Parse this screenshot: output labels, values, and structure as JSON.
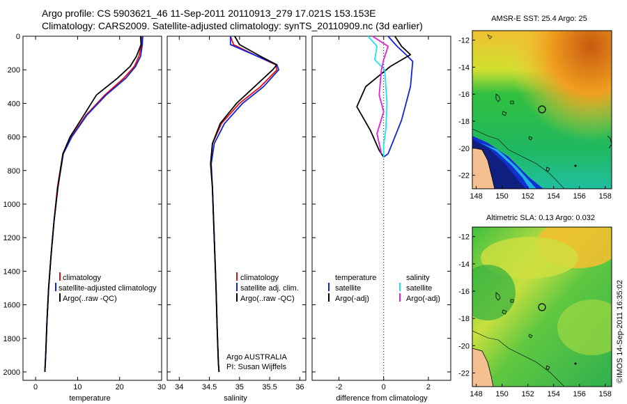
{
  "header": {
    "line1": "Argo profile: CS 5903621_46 11-Sep-2011 20110913_279 17.021S 153.153E",
    "line2": "Climatology: CARS2009. Satellite-adjusted climatology: synTS_20110909.nc (3d earlier)"
  },
  "colors": {
    "climatology": "#e01010",
    "satellite": "#1020e0",
    "argo": "#000000",
    "sat_sal": "#20e0f0",
    "argo_sal": "#e020e0"
  },
  "chart_data": [
    {
      "type": "line",
      "xlabel": "temperature",
      "xlim": [
        -3,
        30
      ],
      "ylim": [
        2050,
        0
      ],
      "xticks": [
        0,
        10,
        20,
        30
      ],
      "xticklabels": [
        "0",
        "10",
        "20",
        "30"
      ],
      "yticks": [
        0,
        200,
        400,
        600,
        800,
        1000,
        1200,
        1400,
        1600,
        1800,
        2000
      ],
      "yticklabels": [
        "0",
        "200",
        "400",
        "600",
        "800",
        "1000",
        "1200",
        "1400",
        "1600",
        "1800",
        "2000"
      ],
      "legend": [
        "climatology",
        "satellite-adjusted climatology",
        "Argo(..raw -QC)"
      ],
      "series": [
        {
          "name": "climatology",
          "x": [
            25.3,
            25.2,
            24.6,
            23.5,
            21.0,
            16.5,
            12.0,
            8.5,
            6.5,
            5.2,
            4.4,
            3.7,
            3.1,
            2.7,
            2.4,
            2.2
          ],
          "y": [
            0,
            50,
            120,
            180,
            250,
            350,
            470,
            600,
            700,
            900,
            1100,
            1300,
            1500,
            1700,
            1900,
            2000
          ]
        },
        {
          "name": "satellite-adjusted climatology",
          "x": [
            25.5,
            25.4,
            25.0,
            23.8,
            21.5,
            16.8,
            12.2,
            8.6,
            6.6,
            5.3,
            4.4,
            3.7,
            3.1,
            2.7,
            2.4,
            2.2
          ],
          "y": [
            0,
            50,
            120,
            180,
            250,
            350,
            470,
            600,
            700,
            900,
            1100,
            1300,
            1500,
            1700,
            1900,
            2000
          ]
        },
        {
          "name": "Argo(..raw -QC)",
          "x": [
            25.0,
            25.1,
            24.0,
            22.5,
            19.5,
            14.5,
            11.5,
            8.2,
            6.5,
            5.3,
            4.4,
            3.7,
            3.1,
            2.7,
            2.4,
            2.2
          ],
          "y": [
            0,
            50,
            120,
            180,
            250,
            350,
            470,
            600,
            700,
            900,
            1100,
            1300,
            1500,
            1700,
            1900,
            2000
          ]
        }
      ]
    },
    {
      "type": "line",
      "xlabel": "salinity",
      "xlim": [
        33.8,
        36.1
      ],
      "ylim": [
        2050,
        0
      ],
      "xticks": [
        34,
        34.5,
        35,
        35.5,
        36
      ],
      "xticklabels": [
        "34",
        "34.5",
        "35",
        "35.5",
        "36"
      ],
      "legend": [
        "climatology",
        "satellite adj. clim.",
        "Argo(..raw -QC)"
      ],
      "annotation": [
        "Argo AUSTRALIA",
        "PI: Susan Wijffels"
      ],
      "series": [
        {
          "name": "climatology",
          "x": [
            34.85,
            34.9,
            35.3,
            35.6,
            35.62,
            35.35,
            35.0,
            34.7,
            34.55,
            34.52,
            34.55,
            34.58,
            34.61,
            34.63,
            34.65,
            34.66
          ],
          "y": [
            0,
            50,
            120,
            170,
            200,
            300,
            400,
            520,
            640,
            760,
            900,
            1200,
            1500,
            1750,
            1950,
            2000
          ]
        },
        {
          "name": "satellite adj. clim.",
          "x": [
            34.85,
            34.85,
            35.3,
            35.62,
            35.65,
            35.4,
            35.05,
            34.75,
            34.58,
            34.53,
            34.55,
            34.58,
            34.61,
            34.63,
            34.65,
            34.66
          ],
          "y": [
            0,
            50,
            120,
            170,
            200,
            300,
            400,
            520,
            640,
            760,
            900,
            1200,
            1500,
            1750,
            1950,
            2000
          ]
        },
        {
          "name": "Argo(..raw -QC)",
          "x": [
            34.92,
            35.0,
            35.35,
            35.62,
            35.55,
            35.25,
            34.95,
            34.68,
            34.55,
            34.52,
            34.55,
            34.58,
            34.61,
            34.63,
            34.65,
            34.66
          ],
          "y": [
            0,
            50,
            120,
            170,
            200,
            300,
            400,
            520,
            640,
            760,
            900,
            1200,
            1500,
            1750,
            1950,
            2000
          ]
        }
      ]
    },
    {
      "type": "line",
      "xlabel": "difference from climatology",
      "xlim": [
        -3.2,
        3.0
      ],
      "ylim": [
        2050,
        0
      ],
      "xticks": [
        -2,
        0,
        2
      ],
      "xticklabels": [
        "-2",
        "0",
        "2"
      ],
      "legend_groups": [
        {
          "title": "temperature",
          "items": [
            "satellite",
            "Argo(-adj)"
          ]
        },
        {
          "title": "salinity",
          "items": [
            "satellite",
            "Argo(-adj)"
          ]
        }
      ],
      "series": [
        {
          "name": "temperature satellite",
          "x": [
            0.2,
            0.6,
            1.0,
            1.3,
            1.2,
            0.8,
            0.5,
            0.2,
            0.0
          ],
          "y": [
            0,
            60,
            110,
            150,
            300,
            500,
            600,
            700,
            720
          ]
        },
        {
          "name": "temperature Argo(-adj)",
          "x": [
            0.5,
            0.8,
            1.2,
            0.3,
            -0.8,
            -1.2,
            -0.6,
            -0.2,
            0.0
          ],
          "y": [
            0,
            60,
            110,
            180,
            300,
            420,
            560,
            680,
            720
          ]
        },
        {
          "name": "salinity satellite",
          "x": [
            -0.7,
            -0.3,
            -0.4,
            0.05,
            0.15,
            0.1,
            0.0,
            0.0
          ],
          "y": [
            0,
            60,
            140,
            200,
            400,
            550,
            650,
            720
          ]
        },
        {
          "name": "salinity Argo(-adj)",
          "x": [
            -0.5,
            0.2,
            0.0,
            -0.1,
            -0.2,
            0.0,
            -0.3,
            -0.1
          ],
          "y": [
            0,
            60,
            140,
            200,
            350,
            450,
            580,
            700
          ]
        }
      ]
    },
    {
      "type": "heatmap",
      "title": "AMSR-E SST: 25.4 Argo: 25",
      "xticks": [
        148,
        150,
        152,
        154,
        156,
        158
      ],
      "yticks": [
        -12,
        -14,
        -16,
        -18,
        -20,
        -22
      ]
    },
    {
      "type": "heatmap",
      "title": "Altimetric SLA: 0.13 Argo: 0.032",
      "xticks": [
        148,
        150,
        152,
        154,
        156,
        158
      ],
      "yticks": [
        -12,
        -14,
        -16,
        -18,
        -20,
        -22
      ]
    }
  ],
  "stamp": "©IMOS 14-Sep-2011 16:35:02"
}
